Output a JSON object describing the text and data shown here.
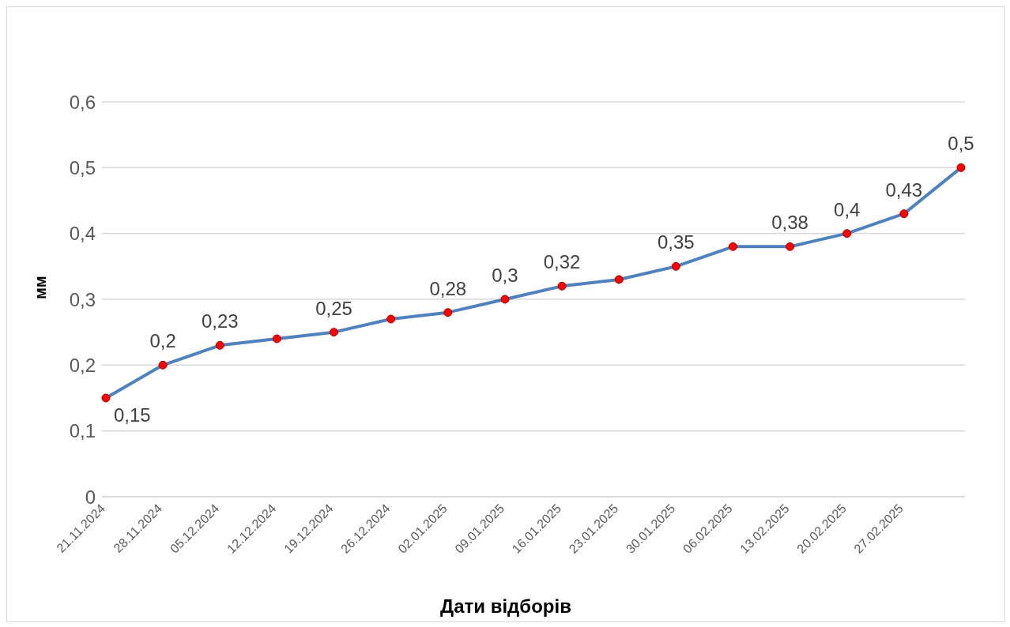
{
  "chart_data": {
    "type": "line",
    "xlabel": "Дати відборів",
    "ylabel": "мм",
    "categories": [
      "21.11.2024",
      "28.11.2024",
      "05.12.2024",
      "12.12.2024",
      "19.12.2024",
      "26.12.2024",
      "02.01.2025",
      "09.01.2025",
      "16.01.2025",
      "23.01.2025",
      "30.01.2025",
      "06.02.2025",
      "13.02.2025",
      "20.02.2025",
      "27.02.2025",
      null
    ],
    "series": [
      {
        "color": "#4f81bd",
        "values": [
          0.15,
          0.2,
          0.23,
          0.24,
          0.25,
          0.27,
          0.28,
          0.3,
          0.32,
          0.33,
          0.35,
          0.38,
          0.38,
          0.4,
          0.43,
          0.5
        ],
        "value_labels": [
          "0,15",
          "0,2",
          "0,23",
          null,
          "0,25",
          null,
          "0,28",
          "0,3",
          "0,32",
          null,
          "0,35",
          null,
          "0,38",
          "0,4",
          "0,43",
          "0,5"
        ]
      }
    ],
    "ylim": [
      0,
      0.6
    ],
    "yticks": [
      {
        "value": 0,
        "label": "0"
      },
      {
        "value": 0.1,
        "label": "0,1"
      },
      {
        "value": 0.2,
        "label": "0,2"
      },
      {
        "value": 0.3,
        "label": "0,3"
      },
      {
        "value": 0.4,
        "label": "0,4"
      },
      {
        "value": 0.5,
        "label": "0,5"
      },
      {
        "value": 0.6,
        "label": "0,6"
      }
    ],
    "grid": "y",
    "legend": false,
    "marker": "circle",
    "line_style": "solid"
  }
}
